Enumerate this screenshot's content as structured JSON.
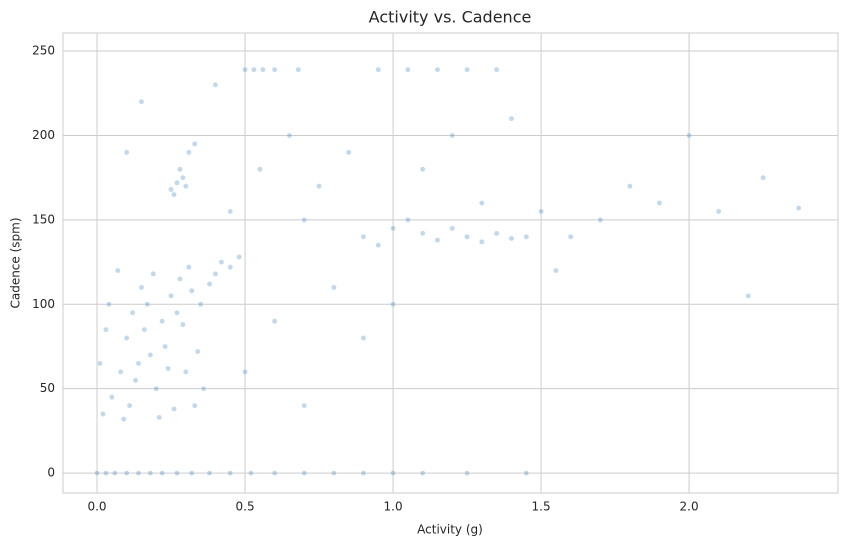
{
  "chart_data": {
    "type": "scatter",
    "title": "Activity vs. Cadence",
    "x_label": "Activity (g)",
    "y_label": "Cadence (spm)",
    "color": "#3b7fb6",
    "grid": true,
    "xlim": [
      -0.115,
      2.503
    ],
    "ylim": [
      -11.8,
      260.7
    ],
    "xticks": [
      {
        "value": 0,
        "label": "0.0"
      },
      {
        "value": 0.5,
        "label": "0.5"
      },
      {
        "value": 1,
        "label": "1.0"
      },
      {
        "value": 1.5,
        "label": "1.5"
      },
      {
        "value": 2,
        "label": "2.0"
      }
    ],
    "yticks": [
      0,
      50,
      100,
      150,
      200,
      250
    ],
    "x": [
      0,
      0.03,
      0.06,
      0.1,
      0.14,
      0.18,
      0.22,
      0.27,
      0.32,
      0.38,
      0.45,
      0.52,
      0.6,
      0.7,
      0.8,
      0.9,
      1.0,
      1.1,
      1.25,
      1.45,
      0.02,
      0.05,
      0.08,
      0.1,
      0.12,
      0.15,
      0.18,
      0.2,
      0.22,
      0.25,
      0.28,
      0.3,
      0.33,
      0.35,
      0.04,
      0.07,
      0.09,
      0.13,
      0.16,
      0.19,
      0.23,
      0.26,
      0.29,
      0.31,
      0.34,
      0.01,
      0.03,
      0.11,
      0.14,
      0.17,
      0.21,
      0.24,
      0.27,
      0.32,
      0.36,
      0.38,
      0.4,
      0.42,
      0.45,
      0.48,
      0.25,
      0.27,
      0.29,
      0.26,
      0.3,
      0.28,
      0.31,
      0.33,
      0.9,
      1.0,
      1.05,
      1.1,
      1.15,
      1.2,
      1.25,
      1.3,
      1.35,
      1.4,
      1.45,
      0.95,
      0.5,
      0.53,
      0.56,
      0.6,
      0.68,
      0.95,
      1.05,
      1.15,
      1.25,
      1.35,
      0.5,
      0.6,
      0.7,
      0.8,
      0.55,
      0.65,
      0.75,
      0.85,
      0.9,
      1.1,
      1.2,
      1.3,
      1.5,
      1.6,
      1.7,
      1.8,
      1.9,
      2.0,
      2.1,
      2.25,
      2.37,
      1.55,
      1.0,
      0.45,
      0.7,
      2.2,
      1.4,
      0.15,
      0.1,
      0.4
    ],
    "y": [
      0,
      0,
      0,
      0,
      0,
      0,
      0,
      0,
      0,
      0,
      0,
      0,
      0,
      0,
      0,
      0,
      0,
      0,
      0,
      0,
      35,
      45,
      60,
      80,
      95,
      110,
      70,
      50,
      90,
      105,
      115,
      60,
      40,
      100,
      100,
      120,
      32,
      55,
      85,
      118,
      75,
      38,
      88,
      122,
      72,
      65,
      85,
      40,
      65,
      100,
      33,
      62,
      95,
      108,
      50,
      112,
      118,
      125,
      122,
      128,
      168,
      172,
      175,
      165,
      170,
      180,
      190,
      195,
      140,
      145,
      150,
      142,
      138,
      145,
      140,
      137,
      142,
      139,
      140,
      135,
      239,
      239,
      239,
      239,
      239,
      239,
      239,
      239,
      239,
      239,
      60,
      90,
      150,
      110,
      180,
      200,
      170,
      190,
      80,
      180,
      200,
      160,
      155,
      140,
      150,
      170,
      160,
      200,
      155,
      175,
      157,
      120,
      100,
      155,
      40,
      105,
      210,
      220,
      190,
      230
    ]
  }
}
